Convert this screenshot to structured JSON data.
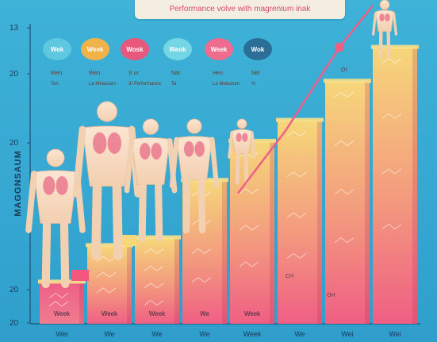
{
  "chart_data": {
    "type": "bar",
    "title": "Performance volve with magrenium inak",
    "ylabel": "MAGGNSAUM",
    "yticks": [
      "13",
      "20",
      "20",
      "20",
      "20"
    ],
    "categories": [
      "Wei",
      "We",
      "We",
      "We",
      "Week",
      "We",
      "Wei",
      "Wei"
    ],
    "bar_labels": [
      "Week",
      "Week",
      "Week",
      "We",
      "Week",
      "",
      "",
      ""
    ],
    "values": [
      1.6,
      3.0,
      3.3,
      5.5,
      7.0,
      7.8,
      9.3,
      10.6
    ],
    "ylim": [
      0,
      11.5
    ],
    "trend": [
      5.0,
      7.4,
      10.6,
      12.2
    ],
    "badges": [
      {
        "label": "Wek",
        "color": "#5ec8e0"
      },
      {
        "label": "Week",
        "color": "#f2b24a"
      },
      {
        "label": "Wosk",
        "color": "#e8577c"
      },
      {
        "label": "Weok",
        "color": "#74d6e4"
      },
      {
        "label": "Week",
        "color": "#ee6c8e"
      },
      {
        "label": "Wok",
        "color": "#2b6f98"
      }
    ],
    "badge_captions": [
      {
        "line1": "Wen",
        "line2": "Ton"
      },
      {
        "line1": "Wen",
        "line2": "La Melasium"
      },
      {
        "line1": "S ur",
        "line2": "3/ Performance"
      },
      {
        "line1": "Nat",
        "line2": "Ta"
      },
      {
        "line1": "Hen",
        "line2": "La Melasium"
      },
      {
        "line1": "Nel",
        "line2": "In"
      }
    ],
    "annotations": [
      "Or",
      "CH",
      "OH"
    ],
    "grid": false,
    "legend": "none",
    "colors": {
      "bar_top": "#f6d77a",
      "bar_bottom": "#ef5f84",
      "trend": "#ee5f86",
      "figure": "#f7ddc4",
      "organ": "#e86a86"
    }
  }
}
